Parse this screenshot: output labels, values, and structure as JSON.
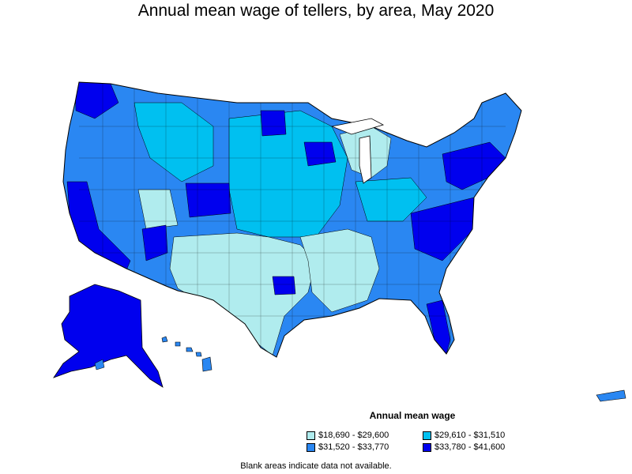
{
  "title": "Annual mean wage of tellers, by area, May 2020",
  "legend": {
    "title": "Annual mean wage",
    "items": [
      {
        "label": "$18,690 - $29,600",
        "color": "#b0ecee"
      },
      {
        "label": "$29,610 - $31,510",
        "color": "#00c0f0"
      },
      {
        "label": "$31,520 - $33,770",
        "color": "#2a87f2"
      },
      {
        "label": "$33,780 - $41,600",
        "color": "#0000ee"
      }
    ]
  },
  "note": "Blank areas indicate data not available."
}
